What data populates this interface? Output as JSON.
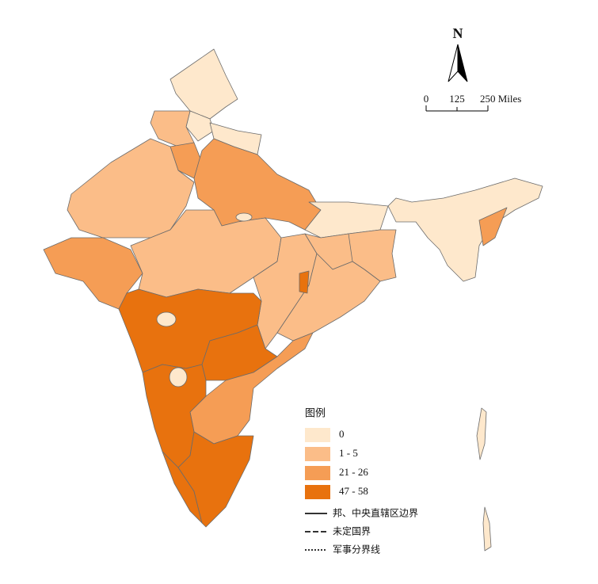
{
  "north_arrow": "N",
  "scale_bar": {
    "labels": [
      "0",
      "125",
      "250 Miles"
    ]
  },
  "legend": {
    "title": "图例",
    "classes": [
      {
        "label": "0",
        "color": "#fee8cc"
      },
      {
        "label": "1 - 5",
        "color": "#fbbd88"
      },
      {
        "label": "21 - 26",
        "color": "#f59d55"
      },
      {
        "label": "47 - 58",
        "color": "#e8720e"
      }
    ],
    "lines": [
      {
        "label": "邦、中央直辖区边界",
        "style": "solid"
      },
      {
        "label": "未定国界",
        "style": "dashed"
      },
      {
        "label": "军事分界线",
        "style": "dotted"
      }
    ]
  }
}
